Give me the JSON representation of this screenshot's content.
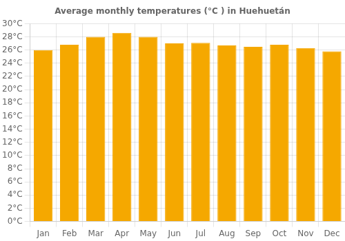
{
  "chart_data": {
    "type": "bar",
    "title": "Average monthly temperatures (°C ) in Huehuetán",
    "categories": [
      "Jan",
      "Feb",
      "Mar",
      "Apr",
      "May",
      "Jun",
      "Jul",
      "Aug",
      "Sep",
      "Oct",
      "Nov",
      "Dec"
    ],
    "values": [
      26.0,
      26.8,
      28.0,
      28.6,
      28.0,
      27.0,
      27.1,
      26.7,
      26.5,
      26.8,
      26.3,
      25.8
    ],
    "color": "#F5A800",
    "ylim": [
      0,
      30
    ],
    "yticks": [
      {
        "value": 0,
        "label": "0°C"
      },
      {
        "value": 2,
        "label": "2°C"
      },
      {
        "value": 4,
        "label": "4°C"
      },
      {
        "value": 6,
        "label": "6°C"
      },
      {
        "value": 8,
        "label": "8°C"
      },
      {
        "value": 10,
        "label": "10°C"
      },
      {
        "value": 12,
        "label": "12°C"
      },
      {
        "value": 14,
        "label": "14°C"
      },
      {
        "value": 16,
        "label": "16°C"
      },
      {
        "value": 18,
        "label": "18°C"
      },
      {
        "value": 20,
        "label": "20°C"
      },
      {
        "value": 22,
        "label": "22°C"
      },
      {
        "value": 24,
        "label": "24°C"
      },
      {
        "value": 26,
        "label": "26°C"
      },
      {
        "value": 28,
        "label": "28°C"
      },
      {
        "value": 30,
        "label": "30°C"
      }
    ],
    "grid": true
  }
}
